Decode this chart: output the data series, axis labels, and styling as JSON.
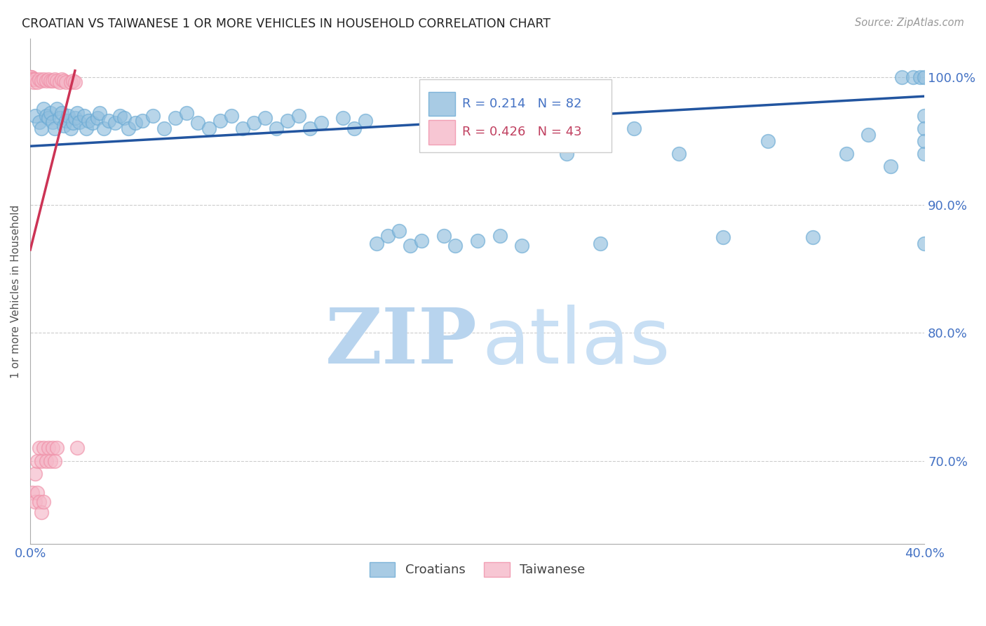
{
  "title": "CROATIAN VS TAIWANESE 1 OR MORE VEHICLES IN HOUSEHOLD CORRELATION CHART",
  "source": "Source: ZipAtlas.com",
  "ylabel": "1 or more Vehicles in Household",
  "xmin": 0.0,
  "xmax": 0.4,
  "ymin": 0.635,
  "ymax": 1.03,
  "yticks": [
    0.7,
    0.8,
    0.9,
    1.0
  ],
  "ytick_labels": [
    "70.0%",
    "80.0%",
    "90.0%",
    "100.0%"
  ],
  "xticks": [
    0.0,
    0.05,
    0.1,
    0.15,
    0.2,
    0.25,
    0.3,
    0.35,
    0.4
  ],
  "xtick_labels": [
    "0.0%",
    "",
    "",
    "",
    "",
    "",
    "",
    "",
    "40.0%"
  ],
  "croatian_color": "#92bfde",
  "croatian_edge_color": "#6aaad4",
  "taiwanese_color": "#f5b8c8",
  "taiwanese_edge_color": "#f090a8",
  "croatian_line_color": "#2255a0",
  "taiwanese_line_color": "#cc3355",
  "watermark_zip_color": "#b8d4ee",
  "watermark_atlas_color": "#c8dff4",
  "legend_box_color": "#e8f0f8",
  "legend_text_color_blue": "#4472c4",
  "legend_text_color_pink": "#e05070",
  "cr_line_x0": 0.0,
  "cr_line_x1": 0.4,
  "cr_line_y0": 0.946,
  "cr_line_y1": 0.985,
  "tw_line_x0": 0.0,
  "tw_line_x1": 0.02,
  "tw_line_y0": 0.865,
  "tw_line_y1": 1.005,
  "croatian_x": [
    0.002,
    0.004,
    0.005,
    0.006,
    0.007,
    0.008,
    0.009,
    0.01,
    0.011,
    0.012,
    0.013,
    0.014,
    0.015,
    0.016,
    0.017,
    0.018,
    0.019,
    0.02,
    0.021,
    0.022,
    0.024,
    0.025,
    0.026,
    0.028,
    0.03,
    0.031,
    0.033,
    0.035,
    0.038,
    0.04,
    0.042,
    0.044,
    0.047,
    0.05,
    0.055,
    0.06,
    0.065,
    0.07,
    0.075,
    0.08,
    0.085,
    0.09,
    0.095,
    0.1,
    0.105,
    0.11,
    0.115,
    0.12,
    0.125,
    0.13,
    0.14,
    0.145,
    0.15,
    0.155,
    0.16,
    0.165,
    0.17,
    0.175,
    0.185,
    0.19,
    0.2,
    0.21,
    0.22,
    0.24,
    0.255,
    0.27,
    0.29,
    0.31,
    0.33,
    0.35,
    0.365,
    0.375,
    0.385,
    0.39,
    0.395,
    0.398,
    0.4,
    0.4,
    0.4,
    0.4,
    0.4,
    0.4
  ],
  "croatian_y": [
    0.97,
    0.965,
    0.96,
    0.975,
    0.97,
    0.968,
    0.972,
    0.965,
    0.96,
    0.975,
    0.968,
    0.972,
    0.962,
    0.966,
    0.97,
    0.96,
    0.964,
    0.968,
    0.972,
    0.965,
    0.97,
    0.96,
    0.966,
    0.964,
    0.968,
    0.972,
    0.96,
    0.966,
    0.964,
    0.97,
    0.968,
    0.96,
    0.964,
    0.966,
    0.97,
    0.96,
    0.968,
    0.972,
    0.964,
    0.96,
    0.966,
    0.97,
    0.96,
    0.964,
    0.968,
    0.96,
    0.966,
    0.97,
    0.96,
    0.964,
    0.968,
    0.96,
    0.966,
    0.87,
    0.876,
    0.88,
    0.868,
    0.872,
    0.876,
    0.868,
    0.872,
    0.876,
    0.868,
    0.94,
    0.87,
    0.96,
    0.94,
    0.875,
    0.95,
    0.875,
    0.94,
    0.955,
    0.93,
    1.0,
    1.0,
    1.0,
    1.0,
    0.87,
    0.94,
    0.97,
    0.96,
    0.95
  ],
  "taiwanese_x": [
    0.0002,
    0.0004,
    0.0006,
    0.0008,
    0.001,
    0.0012,
    0.0015,
    0.002,
    0.003,
    0.004,
    0.005,
    0.006,
    0.007,
    0.008,
    0.009,
    0.01,
    0.011,
    0.012,
    0.013,
    0.014,
    0.015,
    0.016,
    0.018,
    0.019,
    0.02,
    0.021,
    0.002,
    0.003,
    0.004,
    0.005,
    0.006,
    0.007,
    0.008,
    0.009,
    0.01,
    0.011,
    0.012,
    0.001,
    0.002,
    0.003,
    0.004,
    0.005,
    0.006
  ],
  "taiwanese_y": [
    1.0,
    1.0,
    1.0,
    0.998,
    0.998,
    0.998,
    0.996,
    0.998,
    0.996,
    0.998,
    0.997,
    0.998,
    0.997,
    0.998,
    0.997,
    0.997,
    0.998,
    0.997,
    0.996,
    0.998,
    0.997,
    0.996,
    0.996,
    0.997,
    0.996,
    0.71,
    0.69,
    0.7,
    0.71,
    0.7,
    0.71,
    0.7,
    0.71,
    0.7,
    0.71,
    0.7,
    0.71,
    0.675,
    0.668,
    0.675,
    0.668,
    0.66,
    0.668
  ]
}
